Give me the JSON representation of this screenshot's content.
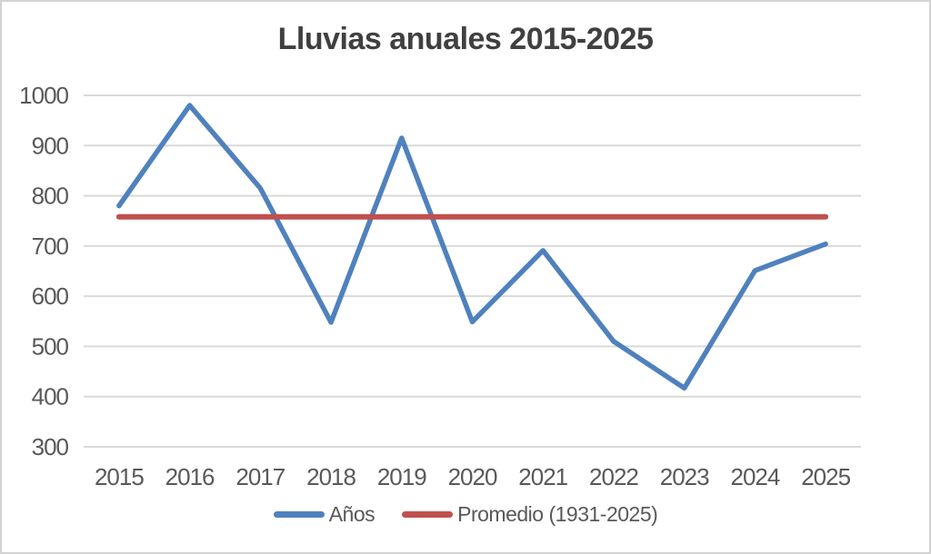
{
  "chart_data": {
    "type": "line",
    "title": "Lluvias anuales 2015-2025",
    "categories": [
      "2015",
      "2016",
      "2017",
      "2018",
      "2019",
      "2020",
      "2021",
      "2022",
      "2023",
      "2024",
      "2025"
    ],
    "series": [
      {
        "name": "Años",
        "color": "#4F81BD",
        "values": [
          780,
          980,
          815,
          548,
          915,
          549,
          691,
          510,
          417,
          651,
          704
        ]
      },
      {
        "name": "Promedio (1931-2025)",
        "color": "#C0504D",
        "constant_value": 758
      }
    ],
    "ylim": [
      300,
      1000
    ],
    "ytick_values": [
      1000,
      900,
      800,
      700,
      600,
      500,
      400,
      300
    ],
    "ytick_labels": [
      "1000",
      "900",
      "800",
      "700",
      "600",
      "500",
      "400",
      "300"
    ],
    "xlabel": "",
    "ylabel": "",
    "grid": true,
    "legend_position": "bottom",
    "colors": {
      "grid": "#D9D9D9",
      "axis_text": "#595959",
      "title_text": "#404040",
      "background": "#FFFFFF",
      "frame_border": "#D2D2D2"
    }
  }
}
